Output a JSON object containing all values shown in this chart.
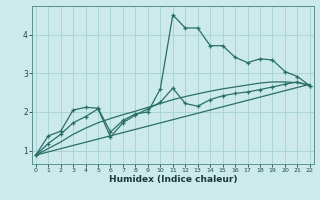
{
  "xlabel": "Humidex (Indice chaleur)",
  "bg_color": "#cceaea",
  "grid_color": "#aad4d4",
  "line_color": "#2a6e68",
  "x_ticks": [
    0,
    1,
    2,
    3,
    4,
    5,
    6,
    7,
    8,
    9,
    10,
    11,
    12,
    13,
    14,
    15,
    16,
    17,
    18,
    19,
    20,
    21,
    22
  ],
  "y_ticks": [
    1,
    2,
    3,
    4
  ],
  "xlim": [
    -0.3,
    22.3
  ],
  "ylim": [
    0.65,
    4.75
  ],
  "line1_x": [
    0,
    1,
    2,
    3,
    4,
    5,
    6,
    7,
    8,
    9,
    10,
    11,
    12,
    13,
    14,
    15,
    16,
    17,
    18,
    19,
    20,
    21,
    22
  ],
  "line1_y": [
    0.88,
    1.38,
    1.5,
    2.05,
    2.12,
    2.1,
    1.48,
    1.78,
    1.95,
    2.0,
    2.6,
    4.52,
    4.18,
    4.18,
    3.72,
    3.72,
    3.42,
    3.28,
    3.38,
    3.35,
    3.05,
    2.92,
    2.68
  ],
  "line2_x": [
    0,
    1,
    2,
    3,
    4,
    5,
    6,
    7,
    8,
    9,
    10,
    11,
    12,
    13,
    14,
    15,
    16,
    17,
    18,
    19,
    20,
    21,
    22
  ],
  "line2_y": [
    0.88,
    1.18,
    1.42,
    1.72,
    1.88,
    2.08,
    1.35,
    1.72,
    1.92,
    2.08,
    2.25,
    2.62,
    2.22,
    2.15,
    2.32,
    2.42,
    2.48,
    2.52,
    2.58,
    2.65,
    2.72,
    2.78,
    2.68
  ],
  "line3_x": [
    0,
    22
  ],
  "line3_y": [
    0.88,
    2.72
  ],
  "line4_x": [
    0,
    1,
    2,
    3,
    4,
    5,
    6,
    7,
    8,
    9,
    10,
    11,
    12,
    13,
    14,
    15,
    16,
    17,
    18,
    19,
    20,
    21,
    22
  ],
  "line4_y": [
    0.88,
    1.05,
    1.22,
    1.42,
    1.58,
    1.72,
    1.83,
    1.93,
    2.02,
    2.12,
    2.22,
    2.32,
    2.4,
    2.47,
    2.54,
    2.6,
    2.65,
    2.7,
    2.75,
    2.78,
    2.78,
    2.76,
    2.7
  ]
}
